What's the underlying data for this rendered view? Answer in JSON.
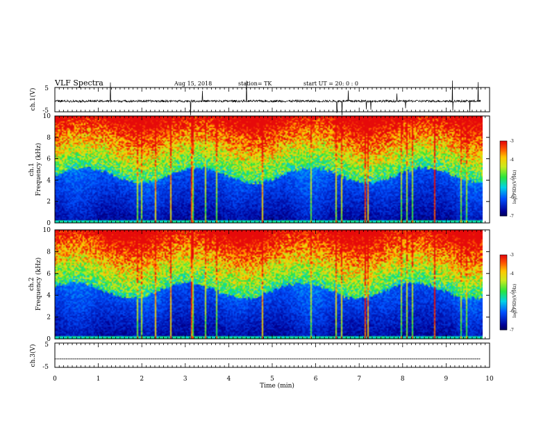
{
  "header": {
    "title": "VLF Spectra",
    "date": "Aug 15, 2018",
    "station": "station=  TK",
    "start": "start  UT  =   20: 0  : 0"
  },
  "chart_data": [
    {
      "type": "line",
      "panel": "ch1-waveform",
      "ylabel": "ch.1(V)",
      "ylim": [
        -5,
        5
      ],
      "yticks": [
        "5",
        "-5"
      ],
      "xlim": [
        0,
        10
      ]
    },
    {
      "type": "heatmap",
      "panel": "ch1-spectrogram",
      "ylabel_line1": "ch.1",
      "ylabel_line2": "Frequency  (kHz)",
      "ylim": [
        0,
        10
      ],
      "yticks": [
        "0",
        "2",
        "4",
        "6",
        "8",
        "10"
      ],
      "xlim": [
        0,
        10
      ],
      "colorbar": {
        "label": "log(PSD)(V²/Hz)",
        "range": [
          -7,
          -3
        ],
        "ticks": [
          "-3",
          "-4",
          "-5",
          "-6",
          "-7"
        ]
      }
    },
    {
      "type": "heatmap",
      "panel": "ch2-spectrogram",
      "ylabel_line1": "ch.2",
      "ylabel_line2": "Frequency  (kHz)",
      "ylim": [
        0,
        10
      ],
      "yticks": [
        "0",
        "2",
        "4",
        "6",
        "8",
        "10"
      ],
      "xlim": [
        0,
        10
      ],
      "colorbar": {
        "label": "log(PSD)(V²/Hz)",
        "range": [
          -7,
          -3
        ],
        "ticks": [
          "-3",
          "-4",
          "-5",
          "-6",
          "-7"
        ]
      }
    },
    {
      "type": "line",
      "panel": "ch3-waveform",
      "ylabel": "ch.3(V)",
      "ylim": [
        -5,
        5
      ],
      "yticks": [
        "5",
        "-5"
      ],
      "xlim": [
        0,
        10
      ],
      "level": -1.5
    }
  ],
  "xaxis": {
    "label": "Time  (min)",
    "ticks": [
      "0",
      "1",
      "2",
      "3",
      "4",
      "5",
      "6",
      "7",
      "8",
      "9",
      "10"
    ]
  },
  "colors": {
    "axis": "#000000"
  }
}
